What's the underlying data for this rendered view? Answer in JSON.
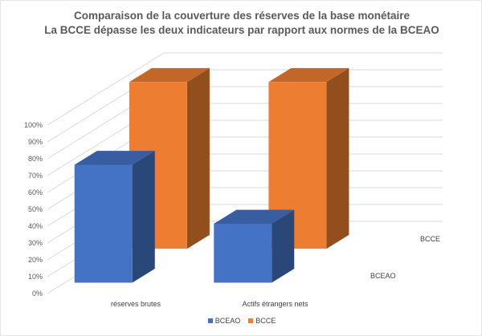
{
  "chart_data": {
    "type": "bar",
    "title": "Comparaison de la couverture des réserves de la base monétaire",
    "subtitle": "La BCCE dépasse les deux indicateurs par rapport aux normes de la BCEAO",
    "categories": [
      "réserves brutes",
      "Actifs étrangers nets"
    ],
    "series": [
      {
        "name": "BCEAO",
        "values": [
          0.7,
          0.35
        ],
        "color": "#4472C4"
      },
      {
        "name": "BCCE",
        "values": [
          0.99,
          0.99
        ],
        "color": "#ED7D31"
      }
    ],
    "ylim": [
      0,
      1
    ],
    "ytick_labels": [
      "0%",
      "10%",
      "20%",
      "30%",
      "40%",
      "50%",
      "60%",
      "70%",
      "80%",
      "90%",
      "100%"
    ],
    "grid": true,
    "legend": "bottom",
    "style": "3d-column"
  }
}
